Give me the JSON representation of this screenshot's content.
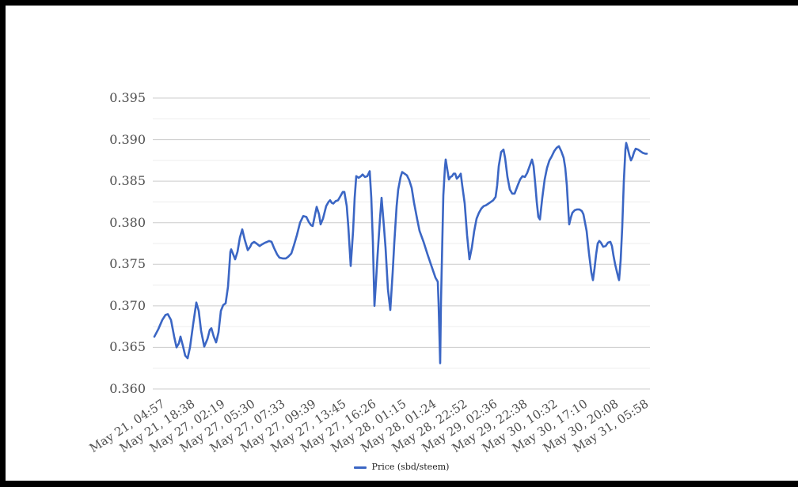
{
  "chart_data": {
    "type": "line",
    "title": "",
    "legend_position": "bottom",
    "grid": "horizontal-major-and-minor",
    "colors": {
      "line": "#3b66c4",
      "major_gridline": "#cccccc",
      "minor_gridline": "#ededed",
      "axis_label_text": "#4f4f4f",
      "legend_text": "#1f1f1f",
      "frame_border": "#000000",
      "background": "#ffffff"
    },
    "series": [
      {
        "name": "Price (sbd/steem)",
        "color": "#3b66c4"
      }
    ],
    "ylim": [
      0.36,
      0.395
    ],
    "y_ticks": [
      0.36,
      0.365,
      0.37,
      0.375,
      0.38,
      0.385,
      0.39,
      0.395
    ],
    "y_tick_labels": [
      "0.360",
      "0.365",
      "0.370",
      "0.375",
      "0.380",
      "0.385",
      "0.390",
      "0.395"
    ],
    "y_minor_ticks": [
      0.3625,
      0.3675,
      0.3725,
      0.3775,
      0.3825,
      0.3875,
      0.3925
    ],
    "x_tick_labels": [
      "May 21, 04:57",
      "May 21, 18:38",
      "May 27, 02:19",
      "May 27, 05:30",
      "May 27, 07:33",
      "May 27, 09:39",
      "May 27, 13:45",
      "May 27, 16:26",
      "May 28, 01:15",
      "May 28, 01:24",
      "May 28, 22:52",
      "May 29, 02:36",
      "May 29, 22:38",
      "May 30, 10:32",
      "May 30, 17:10",
      "May 30, 20:08",
      "May 31, 05:58"
    ],
    "points_format": "[x_offset_px_along_time_axis, price_sbd_per_steem]",
    "points": [
      [
        0,
        0.3663
      ],
      [
        5,
        0.3672
      ],
      [
        10,
        0.3683
      ],
      [
        14,
        0.3689
      ],
      [
        17,
        0.369
      ],
      [
        21,
        0.3683
      ],
      [
        25,
        0.3663
      ],
      [
        28,
        0.365
      ],
      [
        31,
        0.3655
      ],
      [
        33,
        0.3663
      ],
      [
        36,
        0.3652
      ],
      [
        39,
        0.364
      ],
      [
        42,
        0.3637
      ],
      [
        45,
        0.365
      ],
      [
        49,
        0.3678
      ],
      [
        53,
        0.3704
      ],
      [
        56,
        0.3694
      ],
      [
        59,
        0.367
      ],
      [
        63,
        0.3651
      ],
      [
        67,
        0.366
      ],
      [
        70,
        0.3671
      ],
      [
        72,
        0.3673
      ],
      [
        75,
        0.3663
      ],
      [
        78,
        0.3656
      ],
      [
        81,
        0.3668
      ],
      [
        84,
        0.3694
      ],
      [
        87,
        0.3701
      ],
      [
        90,
        0.3703
      ],
      [
        93,
        0.3723
      ],
      [
        96,
        0.3765
      ],
      [
        97,
        0.3768
      ],
      [
        100,
        0.3761
      ],
      [
        102,
        0.3756
      ],
      [
        105,
        0.3765
      ],
      [
        108,
        0.3782
      ],
      [
        111,
        0.3792
      ],
      [
        114,
        0.378
      ],
      [
        118,
        0.3767
      ],
      [
        121,
        0.3771
      ],
      [
        123,
        0.3775
      ],
      [
        126,
        0.3777
      ],
      [
        129,
        0.3775
      ],
      [
        133,
        0.3772
      ],
      [
        136,
        0.3774
      ],
      [
        140,
        0.3776
      ],
      [
        145,
        0.3778
      ],
      [
        148,
        0.3777
      ],
      [
        151,
        0.377
      ],
      [
        155,
        0.3762
      ],
      [
        158,
        0.3758
      ],
      [
        162,
        0.3757
      ],
      [
        166,
        0.3757
      ],
      [
        169,
        0.3759
      ],
      [
        173,
        0.3763
      ],
      [
        176,
        0.3772
      ],
      [
        180,
        0.3785
      ],
      [
        184,
        0.38
      ],
      [
        188,
        0.3808
      ],
      [
        192,
        0.3807
      ],
      [
        195,
        0.3801
      ],
      [
        198,
        0.3797
      ],
      [
        200,
        0.3796
      ],
      [
        203,
        0.381
      ],
      [
        205,
        0.3819
      ],
      [
        208,
        0.381
      ],
      [
        210,
        0.3798
      ],
      [
        213,
        0.3805
      ],
      [
        217,
        0.382
      ],
      [
        220,
        0.3825
      ],
      [
        222,
        0.3827
      ],
      [
        224,
        0.3824
      ],
      [
        226,
        0.3823
      ],
      [
        229,
        0.3826
      ],
      [
        232,
        0.3827
      ],
      [
        235,
        0.3832
      ],
      [
        238,
        0.3837
      ],
      [
        240,
        0.3837
      ],
      [
        243,
        0.382
      ],
      [
        245,
        0.3795
      ],
      [
        248,
        0.3748
      ],
      [
        251,
        0.379
      ],
      [
        253,
        0.383
      ],
      [
        255,
        0.3856
      ],
      [
        258,
        0.3854
      ],
      [
        261,
        0.3856
      ],
      [
        263,
        0.3858
      ],
      [
        266,
        0.3855
      ],
      [
        269,
        0.3856
      ],
      [
        272,
        0.3862
      ],
      [
        274,
        0.383
      ],
      [
        276,
        0.3777
      ],
      [
        278,
        0.37
      ],
      [
        280,
        0.373
      ],
      [
        282,
        0.3762
      ],
      [
        285,
        0.3805
      ],
      [
        287,
        0.383
      ],
      [
        290,
        0.3795
      ],
      [
        292,
        0.377
      ],
      [
        295,
        0.372
      ],
      [
        298,
        0.3695
      ],
      [
        301,
        0.374
      ],
      [
        303,
        0.3775
      ],
      [
        306,
        0.382
      ],
      [
        308,
        0.384
      ],
      [
        311,
        0.3855
      ],
      [
        313,
        0.3861
      ],
      [
        316,
        0.3859
      ],
      [
        319,
        0.3857
      ],
      [
        322,
        0.3851
      ],
      [
        325,
        0.3842
      ],
      [
        328,
        0.3824
      ],
      [
        332,
        0.3804
      ],
      [
        335,
        0.379
      ],
      [
        340,
        0.3777
      ],
      [
        345,
        0.3762
      ],
      [
        350,
        0.3748
      ],
      [
        355,
        0.3734
      ],
      [
        358,
        0.3729
      ],
      [
        359,
        0.3703
      ],
      [
        361,
        0.3631
      ],
      [
        362,
        0.3703
      ],
      [
        364,
        0.379
      ],
      [
        365,
        0.3833
      ],
      [
        367,
        0.3866
      ],
      [
        368,
        0.3876
      ],
      [
        370,
        0.3864
      ],
      [
        372,
        0.3852
      ],
      [
        374,
        0.3855
      ],
      [
        376,
        0.3856
      ],
      [
        378,
        0.3859
      ],
      [
        380,
        0.3859
      ],
      [
        382,
        0.3853
      ],
      [
        385,
        0.3856
      ],
      [
        387,
        0.3859
      ],
      [
        389,
        0.3844
      ],
      [
        392,
        0.3823
      ],
      [
        395,
        0.3785
      ],
      [
        398,
        0.3756
      ],
      [
        401,
        0.377
      ],
      [
        404,
        0.379
      ],
      [
        407,
        0.3805
      ],
      [
        410,
        0.3812
      ],
      [
        413,
        0.3817
      ],
      [
        416,
        0.382
      ],
      [
        419,
        0.3821
      ],
      [
        422,
        0.3823
      ],
      [
        425,
        0.3825
      ],
      [
        428,
        0.3827
      ],
      [
        431,
        0.3831
      ],
      [
        433,
        0.3845
      ],
      [
        435,
        0.3868
      ],
      [
        438,
        0.3885
      ],
      [
        441,
        0.3888
      ],
      [
        443,
        0.3878
      ],
      [
        446,
        0.3855
      ],
      [
        449,
        0.384
      ],
      [
        452,
        0.3835
      ],
      [
        455,
        0.3835
      ],
      [
        459,
        0.3845
      ],
      [
        462,
        0.3852
      ],
      [
        465,
        0.3856
      ],
      [
        468,
        0.3855
      ],
      [
        471,
        0.386
      ],
      [
        474,
        0.3868
      ],
      [
        477,
        0.3876
      ],
      [
        479,
        0.3868
      ],
      [
        481,
        0.3848
      ],
      [
        483,
        0.3825
      ],
      [
        485,
        0.3807
      ],
      [
        487,
        0.3804
      ],
      [
        490,
        0.383
      ],
      [
        493,
        0.3852
      ],
      [
        496,
        0.3866
      ],
      [
        499,
        0.3875
      ],
      [
        502,
        0.388
      ],
      [
        505,
        0.3886
      ],
      [
        508,
        0.389
      ],
      [
        511,
        0.3892
      ],
      [
        514,
        0.3886
      ],
      [
        517,
        0.3878
      ],
      [
        519,
        0.3866
      ],
      [
        521,
        0.3845
      ],
      [
        523,
        0.3812
      ],
      [
        524,
        0.3798
      ],
      [
        526,
        0.3806
      ],
      [
        528,
        0.3812
      ],
      [
        531,
        0.3815
      ],
      [
        534,
        0.3816
      ],
      [
        537,
        0.3816
      ],
      [
        540,
        0.3814
      ],
      [
        542,
        0.381
      ],
      [
        544,
        0.38
      ],
      [
        546,
        0.379
      ],
      [
        549,
        0.3763
      ],
      [
        552,
        0.374
      ],
      [
        554,
        0.3731
      ],
      [
        556,
        0.3745
      ],
      [
        558,
        0.3762
      ],
      [
        560,
        0.3775
      ],
      [
        562,
        0.3778
      ],
      [
        564,
        0.3776
      ],
      [
        567,
        0.3771
      ],
      [
        570,
        0.3772
      ],
      [
        573,
        0.3776
      ],
      [
        576,
        0.3777
      ],
      [
        578,
        0.3772
      ],
      [
        580,
        0.376
      ],
      [
        582,
        0.375
      ],
      [
        584,
        0.3742
      ],
      [
        586,
        0.3734
      ],
      [
        587,
        0.3731
      ],
      [
        589,
        0.3755
      ],
      [
        591,
        0.3795
      ],
      [
        593,
        0.385
      ],
      [
        595,
        0.3888
      ],
      [
        596,
        0.3896
      ],
      [
        598,
        0.3889
      ],
      [
        600,
        0.3881
      ],
      [
        602,
        0.3875
      ],
      [
        604,
        0.3879
      ],
      [
        606,
        0.3885
      ],
      [
        608,
        0.3889
      ],
      [
        611,
        0.3888
      ],
      [
        614,
        0.3886
      ],
      [
        617,
        0.3884
      ],
      [
        620,
        0.3883
      ],
      [
        622,
        0.3883
      ]
    ]
  }
}
